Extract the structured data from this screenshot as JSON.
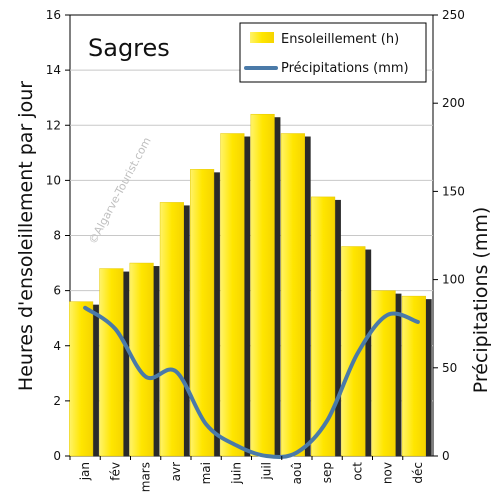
{
  "chart_data": {
    "type": "bar",
    "title": "Sagres",
    "watermark": "©Algarve-Tourist.com",
    "categories": [
      "jan",
      "fév",
      "mars",
      "avr",
      "mai",
      "juin",
      "juil",
      "aoû",
      "sep",
      "oct",
      "nov",
      "déc"
    ],
    "ylabel_left": "Heures d'ensoleillement par jour",
    "ylabel_right": "Précipitations (mm)",
    "ylim_left": [
      0,
      16
    ],
    "ylim_right": [
      0,
      250
    ],
    "yticks_left": [
      "0",
      "2",
      "4",
      "6",
      "8",
      "10",
      "12",
      "14",
      "16"
    ],
    "yticks_right": [
      "0",
      "50",
      "100",
      "150",
      "200",
      "250"
    ],
    "grid": true,
    "legend_position": "top-right",
    "series": [
      {
        "name": "Ensoleillement (h)",
        "type": "bar",
        "axis": "left",
        "color": "#ffe800",
        "values": [
          5.6,
          6.8,
          7.0,
          9.2,
          10.4,
          11.7,
          12.4,
          11.7,
          9.4,
          7.6,
          6.0,
          5.8
        ]
      },
      {
        "name": "Précipitations (mm)",
        "type": "line",
        "axis": "right",
        "color": "#4a7aa8",
        "values": [
          84,
          72,
          45,
          48,
          18,
          6,
          0,
          2,
          20,
          58,
          80,
          76
        ]
      }
    ]
  }
}
